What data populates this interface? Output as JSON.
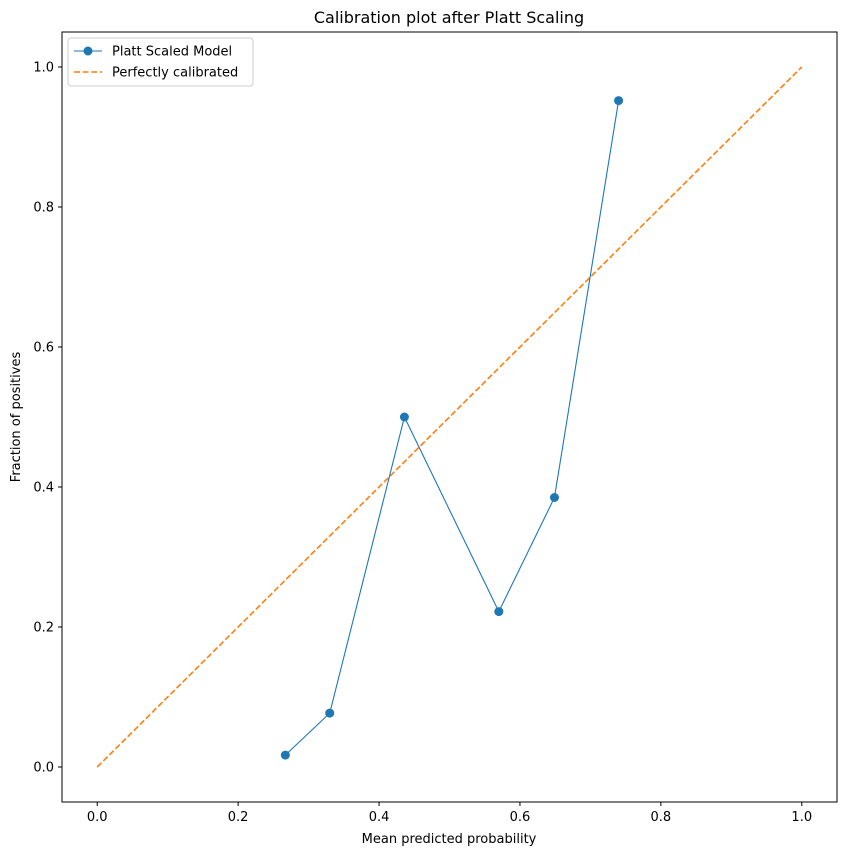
{
  "chart_data": {
    "type": "line",
    "title": "Calibration plot after Platt Scaling",
    "xlabel": "Mean predicted probability",
    "ylabel": "Fraction of positives",
    "xlim": [
      -0.05,
      1.05
    ],
    "ylim": [
      -0.05,
      1.05
    ],
    "xticks": [
      0.0,
      0.2,
      0.4,
      0.6,
      0.8,
      1.0
    ],
    "yticks": [
      0.0,
      0.2,
      0.4,
      0.6,
      0.8,
      1.0
    ],
    "xtick_labels": [
      "0.0",
      "0.2",
      "0.4",
      "0.6",
      "0.8",
      "1.0"
    ],
    "ytick_labels": [
      "0.0",
      "0.2",
      "0.4",
      "0.6",
      "0.8",
      "1.0"
    ],
    "grid": false,
    "legend_position": "top-left",
    "series": [
      {
        "name": "Platt Scaled Model",
        "color": "#1f77b4",
        "marker": "circle",
        "line_style": "solid",
        "x": [
          0.267,
          0.33,
          0.436,
          0.57,
          0.649,
          0.74
        ],
        "y": [
          0.017,
          0.077,
          0.5,
          0.222,
          0.385,
          0.952
        ]
      },
      {
        "name": "Perfectly calibrated",
        "color": "#ff7f0e",
        "marker": "none",
        "line_style": "dashed",
        "x": [
          0.0,
          1.0
        ],
        "y": [
          0.0,
          1.0
        ]
      }
    ]
  }
}
